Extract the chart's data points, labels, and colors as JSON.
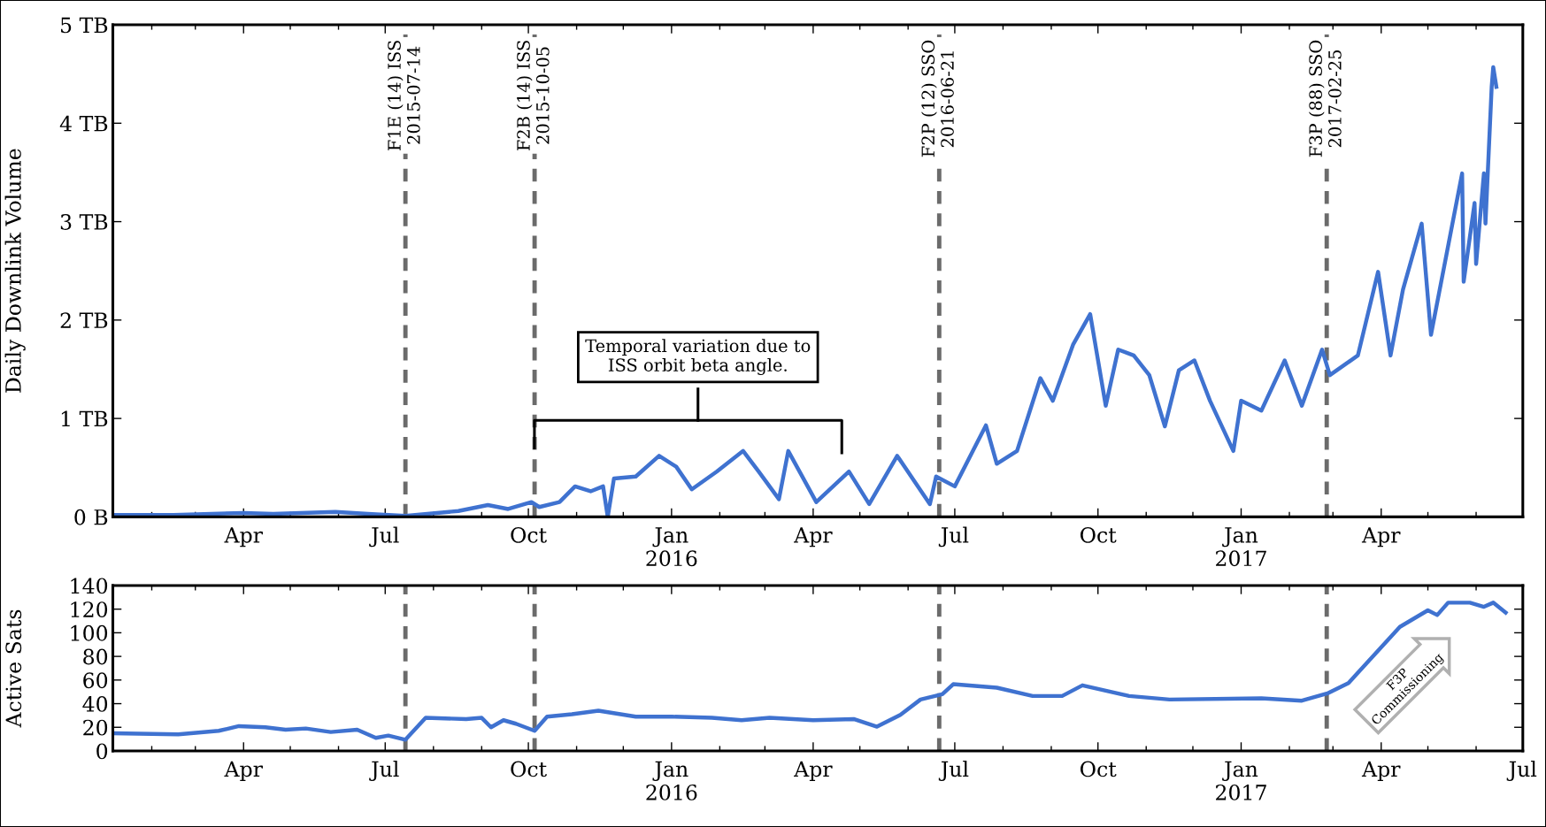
{
  "chart_data": [
    {
      "type": "line",
      "ylabel": "Daily Downlink Volume",
      "xlim": [
        "2015-01-07",
        "2017-07-01"
      ],
      "ylim": [
        0,
        5
      ],
      "xticks": [
        {
          "value": "2015-04-01",
          "label": "Apr"
        },
        {
          "value": "2015-07-01",
          "label": "Jul"
        },
        {
          "value": "2015-10-01",
          "label": "Oct"
        },
        {
          "value": "2016-01-01",
          "label": "Jan\n2016"
        },
        {
          "value": "2016-04-01",
          "label": "Apr"
        },
        {
          "value": "2016-07-01",
          "label": "Jul"
        },
        {
          "value": "2016-10-01",
          "label": "Oct"
        },
        {
          "value": "2017-01-01",
          "label": "Jan\n2017"
        },
        {
          "value": "2017-04-01",
          "label": "Apr"
        }
      ],
      "yticks": [
        {
          "value": 0,
          "label": "0 B"
        },
        {
          "value": 1,
          "label": "1 TB"
        },
        {
          "value": 2,
          "label": "2 TB"
        },
        {
          "value": 3,
          "label": "3 TB"
        },
        {
          "value": 4,
          "label": "4 TB"
        },
        {
          "value": 5,
          "label": "5 TB"
        }
      ],
      "grid": false,
      "legend": false,
      "series": [
        {
          "color": "#3f72d0",
          "x": [
            "2015-01-07",
            "2015-02-15",
            "2015-04-01",
            "2015-04-20",
            "2015-05-30",
            "2015-06-20",
            "2015-07-14",
            "2015-08-17",
            "2015-09-05",
            "2015-09-18",
            "2015-10-03",
            "2015-10-08",
            "2015-10-21",
            "2015-10-31",
            "2015-11-10",
            "2015-11-18",
            "2015-11-21",
            "2015-11-25",
            "2015-12-09",
            "2015-12-24",
            "2016-01-04",
            "2016-01-14",
            "2016-01-30",
            "2016-02-16",
            "2016-02-26",
            "2016-03-10",
            "2016-03-16",
            "2016-04-03",
            "2016-04-24",
            "2016-05-07",
            "2016-05-25",
            "2016-06-15",
            "2016-06-19",
            "2016-07-01",
            "2016-07-21",
            "2016-07-28",
            "2016-08-10",
            "2016-08-25",
            "2016-09-02",
            "2016-09-15",
            "2016-09-26",
            "2016-10-06",
            "2016-10-14",
            "2016-10-24",
            "2016-11-03",
            "2016-11-13",
            "2016-11-22",
            "2016-12-02",
            "2016-12-12",
            "2016-12-27",
            "2017-01-01",
            "2017-01-14",
            "2017-01-29",
            "2017-02-09",
            "2017-02-22",
            "2017-02-27",
            "2017-03-17",
            "2017-03-30",
            "2017-04-07",
            "2017-04-15",
            "2017-04-27",
            "2017-05-03",
            "2017-05-13",
            "2017-05-23",
            "2017-05-24",
            "2017-05-31",
            "2017-06-01",
            "2017-06-06",
            "2017-06-07",
            "2017-06-11",
            "2017-06-12",
            "2017-06-14"
          ],
          "values": [
            0.02,
            0.02,
            0.04,
            0.03,
            0.05,
            0.03,
            0.01,
            0.06,
            0.12,
            0.08,
            0.15,
            0.1,
            0.15,
            0.31,
            0.26,
            0.31,
            0.0,
            0.39,
            0.41,
            0.62,
            0.51,
            0.28,
            0.46,
            0.67,
            0.46,
            0.18,
            0.67,
            0.15,
            0.46,
            0.13,
            0.62,
            0.13,
            0.41,
            0.31,
            0.93,
            0.54,
            0.67,
            1.41,
            1.18,
            1.75,
            2.06,
            1.13,
            1.7,
            1.64,
            1.44,
            0.92,
            1.49,
            1.59,
            1.18,
            0.67,
            1.18,
            1.08,
            1.59,
            1.13,
            1.7,
            1.44,
            1.64,
            2.49,
            1.64,
            2.31,
            2.98,
            1.85,
            2.67,
            3.49,
            2.39,
            3.19,
            2.57,
            3.49,
            2.98,
            4.37,
            4.57,
            4.37
          ]
        }
      ],
      "ref_lines": [
        {
          "axis": "x",
          "value": "2015-07-14",
          "label": "F1E (14) ISS\n2015-07-14",
          "color": "#6b6b6b",
          "line_style": "dashed"
        },
        {
          "axis": "x",
          "value": "2015-10-05",
          "label": "F2B (14) ISS\n2015-10-05",
          "color": "#6b6b6b",
          "line_style": "dashed"
        },
        {
          "axis": "x",
          "value": "2016-06-21",
          "label": "F2P (12) SSO\n2016-06-21",
          "color": "#6b6b6b",
          "line_style": "dashed"
        },
        {
          "axis": "x",
          "value": "2017-02-25",
          "label": "F3P (88) SSO\n2017-02-25",
          "color": "#6b6b6b",
          "line_style": "dashed"
        }
      ],
      "annotations": [
        "Temporal variation due to\nISS orbit beta angle."
      ]
    },
    {
      "type": "line",
      "ylabel": "Active Sats",
      "xlim": [
        "2015-01-07",
        "2017-07-01"
      ],
      "ylim": [
        0,
        140
      ],
      "xticks": [
        {
          "value": "2015-04-01",
          "label": "Apr"
        },
        {
          "value": "2015-07-01",
          "label": "Jul"
        },
        {
          "value": "2015-10-01",
          "label": "Oct"
        },
        {
          "value": "2016-01-01",
          "label": "Jan\n2016"
        },
        {
          "value": "2016-04-01",
          "label": "Apr"
        },
        {
          "value": "2016-07-01",
          "label": "Jul"
        },
        {
          "value": "2016-10-01",
          "label": "Oct"
        },
        {
          "value": "2017-01-01",
          "label": "Jan\n2017"
        },
        {
          "value": "2017-04-01",
          "label": "Apr"
        },
        {
          "value": "2017-07-01",
          "label": "Jul"
        }
      ],
      "yticks": [
        0,
        20,
        40,
        60,
        80,
        100,
        120,
        140
      ],
      "grid": false,
      "legend": false,
      "series": [
        {
          "color": "#3f72d0",
          "x": [
            "2015-01-07",
            "2015-02-18",
            "2015-03-16",
            "2015-03-29",
            "2015-04-15",
            "2015-04-28",
            "2015-05-11",
            "2015-05-27",
            "2015-06-13",
            "2015-06-25",
            "2015-07-03",
            "2015-07-14",
            "2015-07-27",
            "2015-08-22",
            "2015-09-01",
            "2015-09-07",
            "2015-09-15",
            "2015-09-23",
            "2015-10-05",
            "2015-10-13",
            "2015-10-29",
            "2015-11-15",
            "2015-12-09",
            "2016-01-01",
            "2016-01-27",
            "2016-02-15",
            "2016-03-04",
            "2016-04-01",
            "2016-04-27",
            "2016-05-12",
            "2016-05-27",
            "2016-06-09",
            "2016-06-23",
            "2016-06-30",
            "2016-07-28",
            "2016-08-20",
            "2016-09-08",
            "2016-09-21",
            "2016-10-21",
            "2016-11-16",
            "2017-01-14",
            "2017-02-09",
            "2017-02-26",
            "2017-03-11",
            "2017-04-13",
            "2017-05-01",
            "2017-05-07",
            "2017-05-14",
            "2017-05-28",
            "2017-06-06",
            "2017-06-12",
            "2017-06-20"
          ],
          "values": [
            15,
            14,
            17,
            21,
            20,
            18,
            19,
            16,
            18,
            11,
            13,
            9.5,
            28,
            27,
            28,
            20,
            26,
            23,
            17,
            29,
            31,
            34,
            29,
            29,
            28,
            26,
            28,
            26,
            27,
            20.5,
            30.5,
            43.5,
            48,
            56.5,
            53.5,
            46.5,
            46.5,
            55.5,
            46.5,
            43.5,
            44.5,
            42.5,
            49,
            57.5,
            105,
            119,
            115,
            125.5,
            125.5,
            122,
            125.5,
            117
          ]
        }
      ],
      "ref_lines": [
        {
          "axis": "x",
          "value": "2015-07-14",
          "color": "#6b6b6b",
          "line_style": "dashed"
        },
        {
          "axis": "x",
          "value": "2015-10-05",
          "color": "#6b6b6b",
          "line_style": "dashed"
        },
        {
          "axis": "x",
          "value": "2016-06-21",
          "color": "#6b6b6b",
          "line_style": "dashed"
        },
        {
          "axis": "x",
          "value": "2017-02-25",
          "color": "#6b6b6b",
          "line_style": "dashed"
        }
      ],
      "annotations": [
        "F3P\nCommissioning"
      ]
    }
  ]
}
